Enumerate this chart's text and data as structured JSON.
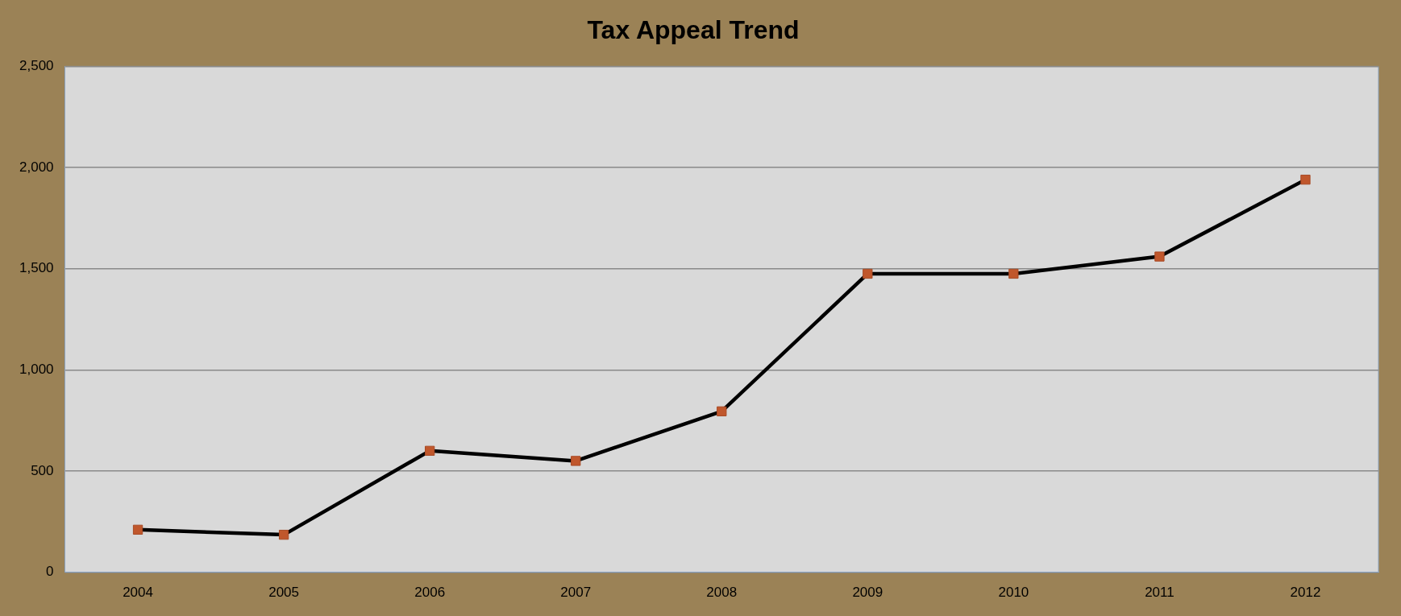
{
  "chart_data": {
    "type": "line",
    "title": "Tax Appeal Trend",
    "categories": [
      "2004",
      "2005",
      "2006",
      "2007",
      "2008",
      "2009",
      "2010",
      "2011",
      "2012"
    ],
    "series": [
      {
        "color": "#000000",
        "values": [
          210,
          185,
          600,
          550,
          795,
          1475,
          1475,
          1560,
          1940
        ]
      }
    ],
    "marker": "square",
    "line_style": "solid",
    "ylim": [
      0,
      2500
    ],
    "yticks": [
      0,
      500,
      {
        "value": 1000,
        "label": "1,000"
      },
      {
        "value": 1500,
        "label": "1,500"
      },
      {
        "value": 2000,
        "label": "2,000"
      },
      {
        "value": 2500,
        "label": "2,500"
      }
    ],
    "grid": "y",
    "legend": false
  }
}
